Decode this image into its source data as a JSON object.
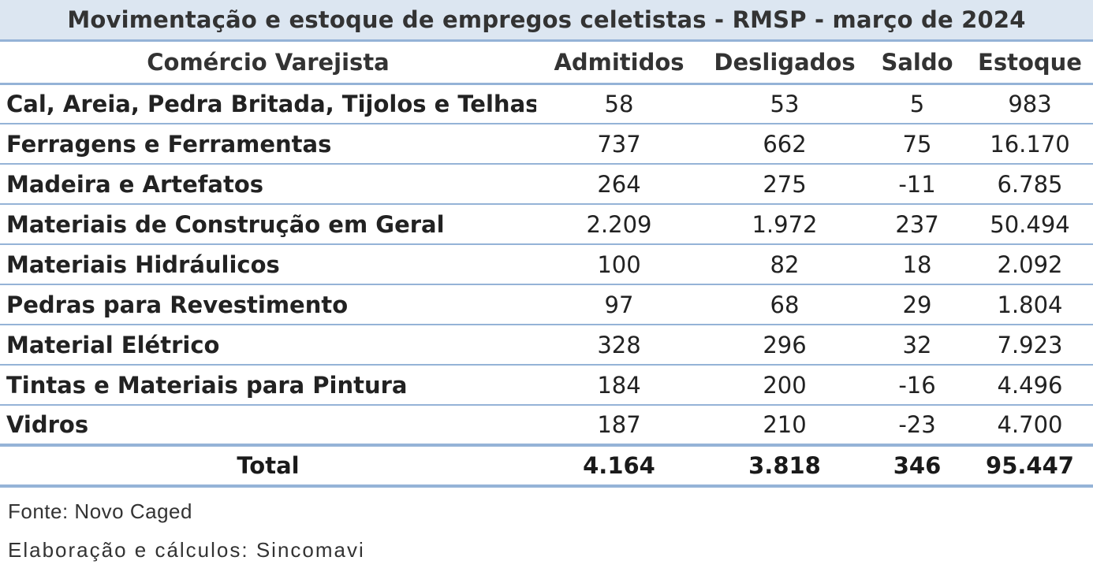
{
  "title": "Movimentação e estoque de empregos celetistas - RMSP - março de 2024",
  "headers": {
    "category": "Comércio Varejista",
    "admitted": "Admitidos",
    "dismissed": "Desligados",
    "balance": "Saldo",
    "stock": "Estoque"
  },
  "rows": [
    {
      "name": "Cal, Areia, Pedra Britada, Tijolos e Telhas",
      "admitted": "58",
      "dismissed": "53",
      "balance": "5",
      "stock": "983"
    },
    {
      "name": "Ferragens e Ferramentas",
      "admitted": "737",
      "dismissed": "662",
      "balance": "75",
      "stock": "16.170"
    },
    {
      "name": "Madeira e Artefatos",
      "admitted": "264",
      "dismissed": "275",
      "balance": "-11",
      "stock": "6.785"
    },
    {
      "name": "Materiais de Construção em Geral",
      "admitted": "2.209",
      "dismissed": "1.972",
      "balance": "237",
      "stock": "50.494"
    },
    {
      "name": "Materiais Hidráulicos",
      "admitted": "100",
      "dismissed": "82",
      "balance": "18",
      "stock": "2.092"
    },
    {
      "name": "Pedras para Revestimento",
      "admitted": "97",
      "dismissed": "68",
      "balance": "29",
      "stock": "1.804"
    },
    {
      "name": "Material Elétrico",
      "admitted": "328",
      "dismissed": "296",
      "balance": "32",
      "stock": "7.923"
    },
    {
      "name": "Tintas e Materiais para Pintura",
      "admitted": "184",
      "dismissed": "200",
      "balance": "-16",
      "stock": "4.496"
    },
    {
      "name": "Vidros",
      "admitted": "187",
      "dismissed": "210",
      "balance": "-23",
      "stock": "4.700"
    }
  ],
  "total": {
    "label": "Total",
    "admitted": "4.164",
    "dismissed": "3.818",
    "balance": "346",
    "stock": "95.447"
  },
  "footnotes": {
    "source": "Fonte: Novo Caged",
    "credits": "Elaboração e cálculos: Sincomavi"
  },
  "colors": {
    "header_background": "#dce6f1",
    "rule": "#95b3d7"
  }
}
